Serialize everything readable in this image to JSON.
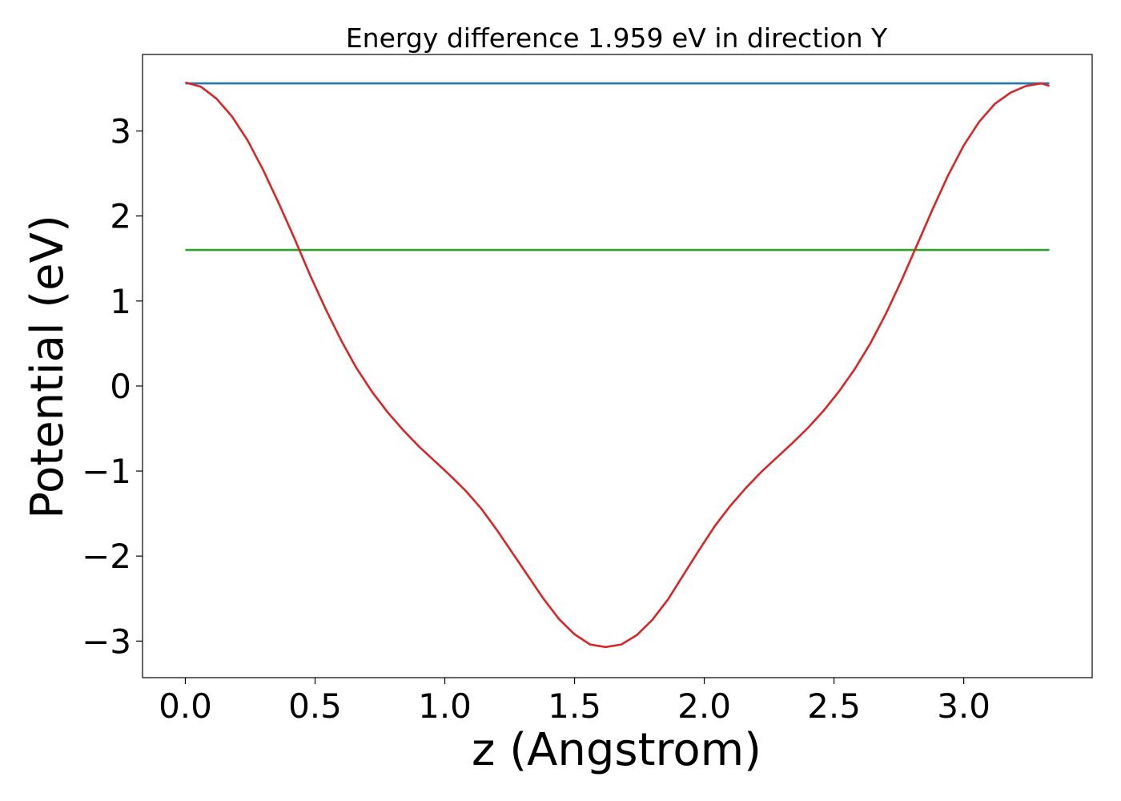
{
  "chart_data": {
    "type": "line",
    "title": "Energy difference 1.959 eV in direction Y",
    "xlabel": "z (Angstrom)",
    "ylabel": "Potential (eV)",
    "xlim": [
      -0.165,
      3.495
    ],
    "ylim": [
      -3.43,
      3.9
    ],
    "xticks": [
      0.0,
      0.5,
      1.0,
      1.5,
      2.0,
      2.5,
      3.0
    ],
    "xtick_labels": [
      "0.0",
      "0.5",
      "1.0",
      "1.5",
      "2.0",
      "2.5",
      "3.0"
    ],
    "yticks": [
      -3,
      -2,
      -1,
      0,
      1,
      2,
      3
    ],
    "ytick_labels": [
      "−3",
      "−2",
      "−1",
      "0",
      "1",
      "2",
      "3"
    ],
    "grid": false,
    "series": [
      {
        "color": "#d62728",
        "x": [
          0.0,
          0.06,
          0.12,
          0.18,
          0.24,
          0.3,
          0.36,
          0.42,
          0.48,
          0.54,
          0.6,
          0.66,
          0.72,
          0.78,
          0.84,
          0.9,
          0.96,
          1.02,
          1.08,
          1.14,
          1.2,
          1.26,
          1.32,
          1.38,
          1.44,
          1.5,
          1.56,
          1.62,
          1.68,
          1.74,
          1.8,
          1.86,
          1.92,
          1.98,
          2.04,
          2.1,
          2.16,
          2.22,
          2.28,
          2.34,
          2.4,
          2.46,
          2.52,
          2.58,
          2.64,
          2.7,
          2.76,
          2.82,
          2.88,
          2.94,
          3.0,
          3.06,
          3.12,
          3.18,
          3.24,
          3.3,
          3.33
        ],
        "values": [
          3.57,
          3.52,
          3.38,
          3.17,
          2.89,
          2.54,
          2.15,
          1.74,
          1.31,
          0.91,
          0.54,
          0.21,
          -0.07,
          -0.31,
          -0.52,
          -0.71,
          -0.88,
          -1.05,
          -1.23,
          -1.44,
          -1.69,
          -1.96,
          -2.23,
          -2.5,
          -2.74,
          -2.92,
          -3.04,
          -3.07,
          -3.04,
          -2.93,
          -2.75,
          -2.51,
          -2.22,
          -1.93,
          -1.65,
          -1.41,
          -1.2,
          -1.01,
          -0.84,
          -0.67,
          -0.49,
          -0.29,
          -0.06,
          0.2,
          0.5,
          0.85,
          1.24,
          1.66,
          2.08,
          2.48,
          2.83,
          3.11,
          3.32,
          3.45,
          3.53,
          3.56,
          3.53
        ]
      },
      {
        "color": "#1f77b4",
        "x": [
          0.0,
          3.33
        ],
        "values": [
          3.56,
          3.56
        ]
      },
      {
        "color": "#2ca02c",
        "x": [
          0.0,
          3.33
        ],
        "values": [
          1.6,
          1.6
        ]
      }
    ]
  }
}
